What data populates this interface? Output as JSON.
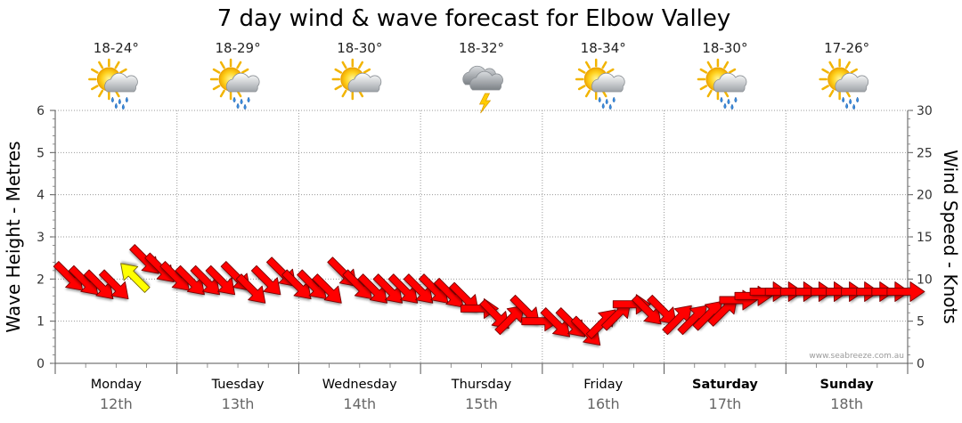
{
  "chart_data": {
    "type": "line",
    "title": "7 day wind & wave forecast for Elbow Valley",
    "ylabel_left": "Wave Height - Metres",
    "ylabel_right": "Wind Speed - Knots",
    "ylim_left": [
      0,
      6
    ],
    "ylim_right": [
      0,
      30
    ],
    "yticks_left": [
      "0",
      "1",
      "2",
      "3",
      "4",
      "5",
      "6"
    ],
    "yticks_right": [
      "0",
      "5",
      "10",
      "15",
      "20",
      "25",
      "30"
    ],
    "days": [
      {
        "name": "Monday",
        "date": "12th",
        "range": "18-24°",
        "icon": "sun-cloud-rain-icon",
        "bold": false
      },
      {
        "name": "Tuesday",
        "date": "13th",
        "range": "18-29°",
        "icon": "sun-cloud-rain-icon",
        "bold": false
      },
      {
        "name": "Wednesday",
        "date": "14th",
        "range": "18-30°",
        "icon": "sun-cloud-icon",
        "bold": false
      },
      {
        "name": "Thursday",
        "date": "15th",
        "range": "18-32°",
        "icon": "thunderstorm-icon",
        "bold": false
      },
      {
        "name": "Friday",
        "date": "16th",
        "range": "18-34°",
        "icon": "sun-cloud-rain-icon",
        "bold": false
      },
      {
        "name": "Saturday",
        "date": "17th",
        "range": "18-30°",
        "icon": "sun-cloud-rain-icon",
        "bold": true
      },
      {
        "name": "Sunday",
        "date": "18th",
        "range": "17-26°",
        "icon": "sun-cloud-rain-icon",
        "bold": true
      }
    ],
    "series": [
      {
        "name": "Wind Speed (knots)",
        "color": "#ff0000",
        "highlight_color": "#ffff00",
        "hours": [
          0,
          3,
          6,
          9,
          12,
          15,
          18,
          21,
          24,
          27,
          30,
          33,
          36,
          39,
          42,
          45,
          48,
          51,
          54,
          57,
          60,
          63,
          66,
          69,
          72,
          75,
          78,
          81,
          84,
          87,
          90,
          93,
          96,
          99,
          102,
          105,
          108,
          111,
          114,
          117,
          120,
          123,
          126,
          129,
          132,
          135,
          138,
          141,
          144,
          147,
          150,
          153,
          156,
          159,
          162,
          165
        ],
        "values": [
          10,
          9.5,
          9,
          9,
          10.5,
          12,
          11,
          10,
          9.5,
          9.5,
          9.5,
          10,
          8.5,
          9.5,
          10.5,
          9,
          9,
          8.5,
          10.5,
          9,
          8.5,
          8.5,
          8.5,
          8.5,
          8.5,
          8,
          7.5,
          6.5,
          5.5,
          5.5,
          6,
          5,
          4.5,
          4.5,
          3.5,
          5,
          6,
          7,
          6,
          6,
          5.5,
          5.5,
          6,
          6.5,
          7.5,
          8,
          8.5,
          8.5,
          8.5,
          8.5,
          8.5,
          8.5,
          8.5,
          8.5,
          8.5,
          8.5
        ],
        "directions": [
          "SE",
          "SE",
          "SE",
          "SE",
          "NW",
          "SE",
          "SE",
          "SE",
          "SE",
          "SE",
          "SE",
          "SE",
          "SE",
          "SE",
          "SE",
          "SE",
          "SE",
          "SE",
          "SE",
          "SE",
          "SE",
          "SE",
          "SE",
          "SE",
          "SE",
          "SE",
          "SE",
          "E",
          "SE",
          "NE",
          "SE",
          "E",
          "SE",
          "SE",
          "SE",
          "NE",
          "NE",
          "E",
          "SE",
          "SE",
          "NE",
          "NE",
          "NE",
          "NE",
          "E",
          "E",
          "E",
          "E",
          "E",
          "E",
          "E",
          "E",
          "E",
          "E",
          "E",
          "E"
        ],
        "highlight_index": 4
      }
    ],
    "credit": "www.seabreeze.com.au"
  }
}
